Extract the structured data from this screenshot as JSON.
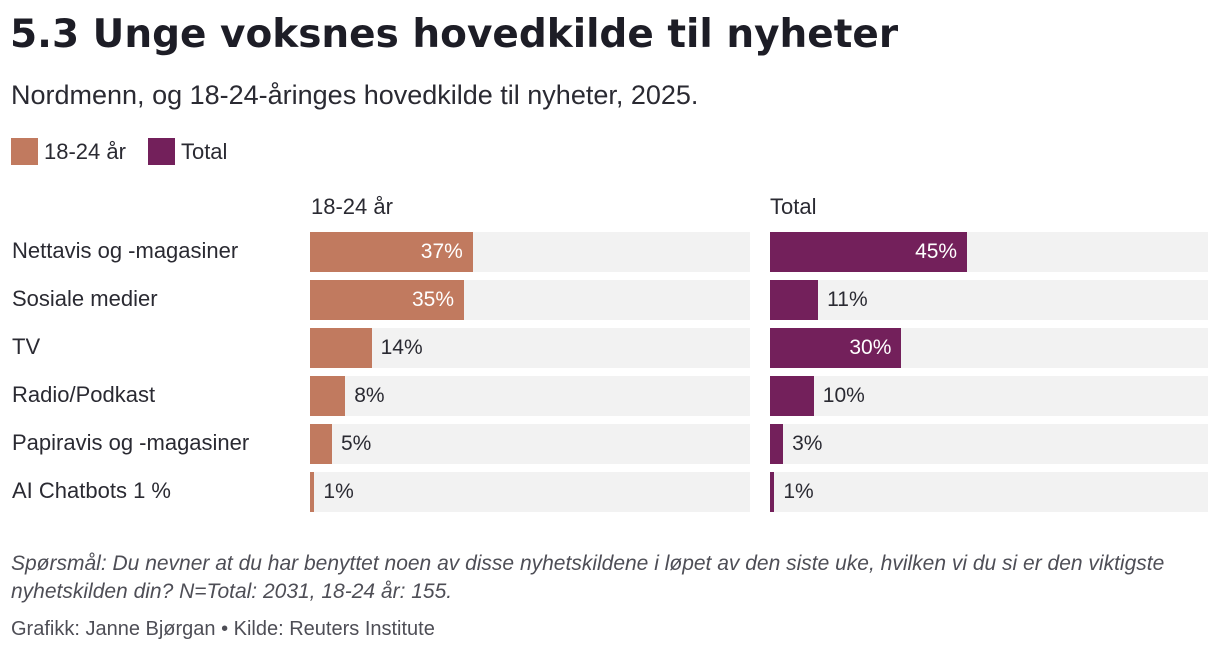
{
  "title": "5.3 Unge voksnes hovedkilde til nyheter",
  "subtitle": "Nordmenn, og 18-24-åringes hovedkilde til nyheter, 2025.",
  "legend": [
    {
      "label": "18-24 år",
      "color": "#c17a5f"
    },
    {
      "label": "Total",
      "color": "#73205b"
    }
  ],
  "note": "Spørsmål: Du nevner at du har benyttet noen av disse nyhetskildene i løpet av den siste uke, hvilken vi du si er den viktigste nyhetskilden din? N=Total: 2031, 18-24 år: 155.",
  "credit": "Grafikk: Janne Bjørgan • Kilde: Reuters Institute",
  "chart_data": {
    "type": "bar",
    "orientation": "horizontal",
    "categories": [
      "Nettavis og -magasiner",
      "Sosiale medier",
      "TV",
      "Radio/Podkast",
      "Papiravis og -magasiner",
      "AI Chatbots 1 %"
    ],
    "xlim": [
      0,
      100
    ],
    "unit": "%",
    "series": [
      {
        "name": "18-24 år",
        "color": "#c17a5f",
        "values": [
          37,
          35,
          14,
          8,
          5,
          1
        ]
      },
      {
        "name": "Total",
        "color": "#73205b",
        "values": [
          45,
          11,
          30,
          10,
          3,
          1
        ]
      }
    ]
  }
}
